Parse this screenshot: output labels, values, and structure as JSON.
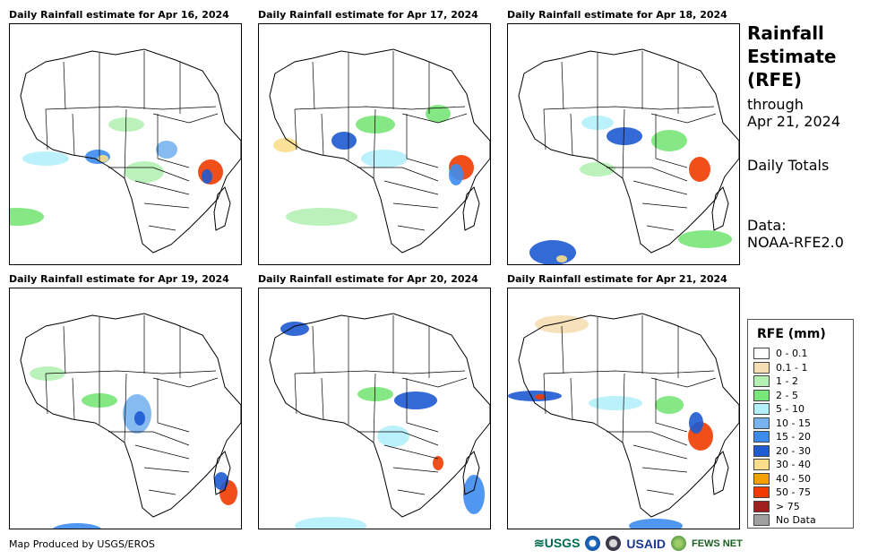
{
  "panels": [
    {
      "title": "Daily Rainfall estimate for Apr 16, 2024"
    },
    {
      "title": "Daily Rainfall estimate for Apr 17, 2024"
    },
    {
      "title": "Daily Rainfall estimate for Apr 18, 2024"
    },
    {
      "title": "Daily Rainfall estimate for Apr 19, 2024"
    },
    {
      "title": "Daily Rainfall estimate for Apr 20, 2024"
    },
    {
      "title": "Daily Rainfall estimate for Apr 21, 2024"
    }
  ],
  "sidebar": {
    "title_line1": "Rainfall",
    "title_line2": "Estimate",
    "title_line3": "(RFE)",
    "through_label": "through",
    "through_date": "Apr 21, 2024",
    "totals_label": "Daily Totals",
    "data_label": "Data:",
    "data_source": "NOAA-RFE2.0"
  },
  "legend": {
    "title": "RFE (mm)",
    "items": [
      {
        "label": "0 - 0.1",
        "color": "#ffffff"
      },
      {
        "label": "0.1 - 1",
        "color": "#f5deb3"
      },
      {
        "label": "1 - 2",
        "color": "#b4f0b4"
      },
      {
        "label": "2 - 5",
        "color": "#78e678"
      },
      {
        "label": "5 - 10",
        "color": "#b4f0fa"
      },
      {
        "label": "10 - 15",
        "color": "#78b4f0"
      },
      {
        "label": "15 - 20",
        "color": "#3c8cf0"
      },
      {
        "label": "20 - 30",
        "color": "#1e5ad2"
      },
      {
        "label": "30 - 40",
        "color": "#fade8c"
      },
      {
        "label": "40 - 50",
        "color": "#f5a000"
      },
      {
        "label": "50 - 75",
        "color": "#f03c00"
      },
      {
        "label": "> 75",
        "color": "#a01e1e"
      },
      {
        "label": "No Data",
        "color": "#a0a0a0"
      }
    ]
  },
  "footer": {
    "credit": "Map Produced by USGS/EROS",
    "logo_usgs": "≋USGS",
    "logo_usaid": "USAID",
    "logo_fews": "FEWS NET"
  }
}
